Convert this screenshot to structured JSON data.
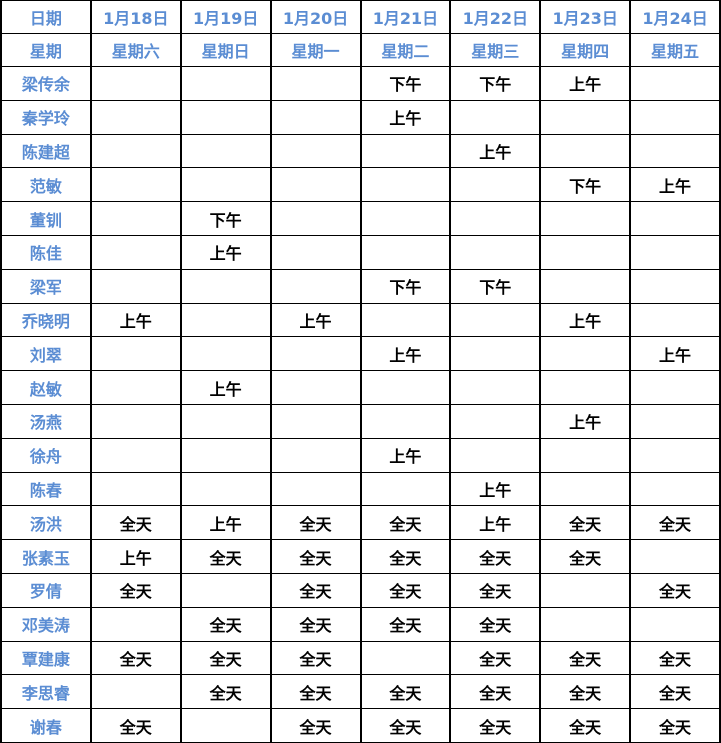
{
  "table": {
    "corner_label": "日期",
    "week_label": "星期",
    "dates": [
      "1月18日",
      "1月19日",
      "1月20日",
      "1月21日",
      "1月22日",
      "1月23日",
      "1月24日"
    ],
    "weekdays": [
      "星期六",
      "星期日",
      "星期一",
      "星期二",
      "星期三",
      "星期四",
      "星期五"
    ],
    "rows": [
      {
        "name": "梁传余",
        "cells": [
          "",
          "",
          "",
          "下午",
          "下午",
          "上午",
          ""
        ]
      },
      {
        "name": "秦学玲",
        "cells": [
          "",
          "",
          "",
          "上午",
          "",
          "",
          ""
        ]
      },
      {
        "name": "陈建超",
        "cells": [
          "",
          "",
          "",
          "",
          "上午",
          "",
          ""
        ]
      },
      {
        "name": "范敏",
        "cells": [
          "",
          "",
          "",
          "",
          "",
          "下午",
          "上午"
        ]
      },
      {
        "name": "董钏",
        "cells": [
          "",
          "下午",
          "",
          "",
          "",
          "",
          ""
        ]
      },
      {
        "name": "陈佳",
        "cells": [
          "",
          "上午",
          "",
          "",
          "",
          "",
          ""
        ]
      },
      {
        "name": "梁军",
        "cells": [
          "",
          "",
          "",
          "下午",
          "下午",
          "",
          ""
        ]
      },
      {
        "name": "乔晓明",
        "cells": [
          "上午",
          "",
          "上午",
          "",
          "",
          "上午",
          ""
        ]
      },
      {
        "name": "刘翠",
        "cells": [
          "",
          "",
          "",
          "上午",
          "",
          "",
          "上午"
        ]
      },
      {
        "name": "赵敏",
        "cells": [
          "",
          "上午",
          "",
          "",
          "",
          "",
          ""
        ]
      },
      {
        "name": "汤燕",
        "cells": [
          "",
          "",
          "",
          "",
          "",
          "上午",
          ""
        ]
      },
      {
        "name": "徐舟",
        "cells": [
          "",
          "",
          "",
          "上午",
          "",
          "",
          ""
        ]
      },
      {
        "name": "陈春",
        "cells": [
          "",
          "",
          "",
          "",
          "上午",
          "",
          ""
        ]
      },
      {
        "name": "汤洪",
        "cells": [
          "全天",
          "上午",
          "全天",
          "全天",
          "上午",
          "全天",
          "全天"
        ]
      },
      {
        "name": "张素玉",
        "cells": [
          "上午",
          "全天",
          "全天",
          "全天",
          "全天",
          "全天",
          ""
        ]
      },
      {
        "name": "罗倩",
        "cells": [
          "全天",
          "",
          "全天",
          "全天",
          "全天",
          "",
          "全天"
        ]
      },
      {
        "name": "邓美涛",
        "cells": [
          "",
          "全天",
          "全天",
          "全天",
          "全天",
          "",
          ""
        ]
      },
      {
        "name": "覃建康",
        "cells": [
          "全天",
          "全天",
          "全天",
          "",
          "全天",
          "全天",
          "全天"
        ]
      },
      {
        "name": "李思睿",
        "cells": [
          "",
          "全天",
          "全天",
          "全天",
          "全天",
          "全天",
          "全天"
        ]
      },
      {
        "name": "谢春",
        "cells": [
          "全天",
          "",
          "全天",
          "全天",
          "全天",
          "全天",
          "全天"
        ]
      }
    ]
  },
  "colors": {
    "header_text": "#5b8dd3",
    "cell_text": "#000000",
    "grid_line": "#000000",
    "background": "#ffffff"
  }
}
